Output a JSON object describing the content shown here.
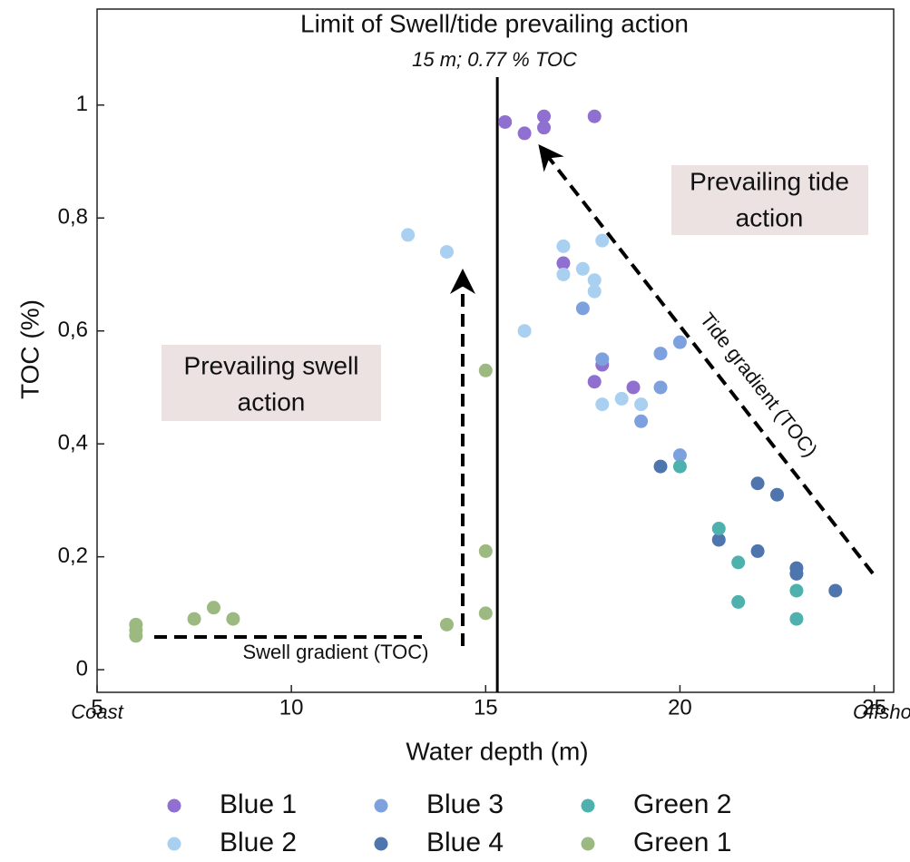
{
  "chart_data": {
    "type": "scatter",
    "title": "Limit of Swell/tide prevailing action",
    "subtitle": "15 m; 0.77 % TOC",
    "x_label": "Water depth (m)",
    "y_label": "TOC (%)",
    "x_left_note": "Coast",
    "x_right_note": "Offshor",
    "limit_depth": 15.3,
    "annotations": {
      "tide_box": [
        "Prevailing tide",
        "action"
      ],
      "swell_box": [
        "Prevailing swell",
        "action"
      ],
      "tide_gradient": "Tide gradient (TOC)",
      "swell_gradient": "Swell gradient (TOC)"
    },
    "xlim": [
      5,
      25.5
    ],
    "ylim": [
      -0.04,
      1.17
    ],
    "xticks": [
      5,
      10,
      15,
      20,
      25
    ],
    "yticks": [
      0,
      {
        "value": 0.2,
        "label": "0,2"
      },
      {
        "value": 0.4,
        "label": "0,4"
      },
      {
        "value": 0.6,
        "label": "0,6"
      },
      {
        "value": 0.8,
        "label": "0,8"
      },
      1
    ],
    "series": [
      {
        "name": "Blue 1",
        "color": "#8f6fd0",
        "x": [
          15.5,
          16,
          16.5,
          16.5,
          17.8,
          17,
          17.8,
          18,
          18.8
        ],
        "values": [
          0.97,
          0.95,
          0.98,
          0.96,
          0.98,
          0.72,
          0.51,
          0.54,
          0.5
        ]
      },
      {
        "name": "Blue 2",
        "color": "#a9d0f0",
        "x": [
          13,
          14,
          16,
          17,
          17,
          17.5,
          17.8,
          17.8,
          18,
          18,
          18.5,
          19
        ],
        "values": [
          0.77,
          0.74,
          0.6,
          0.75,
          0.7,
          0.71,
          0.69,
          0.67,
          0.76,
          0.47,
          0.48,
          0.47
        ]
      },
      {
        "name": "Blue 3",
        "color": "#7da1de",
        "x": [
          17.5,
          18,
          19.5,
          20,
          19.5,
          19,
          20
        ],
        "values": [
          0.64,
          0.55,
          0.56,
          0.58,
          0.5,
          0.44,
          0.38
        ]
      },
      {
        "name": "Blue 4",
        "color": "#4e75ae",
        "x": [
          19.5,
          22,
          22.5,
          21,
          22,
          23,
          23,
          24
        ],
        "values": [
          0.36,
          0.33,
          0.31,
          0.23,
          0.21,
          0.18,
          0.17,
          0.14
        ]
      },
      {
        "name": "Green 2",
        "color": "#4fb1ad",
        "x": [
          20,
          21,
          21.5,
          21.5,
          23,
          23
        ],
        "values": [
          0.36,
          0.25,
          0.19,
          0.12,
          0.14,
          0.09
        ]
      },
      {
        "name": "Green 1",
        "color": "#9bb981",
        "x": [
          6,
          6,
          6,
          7.5,
          8,
          8.5,
          14,
          15,
          15,
          15
        ],
        "values": [
          0.08,
          0.07,
          0.06,
          0.09,
          0.11,
          0.09,
          0.08,
          0.53,
          0.21,
          0.1
        ]
      }
    ]
  }
}
